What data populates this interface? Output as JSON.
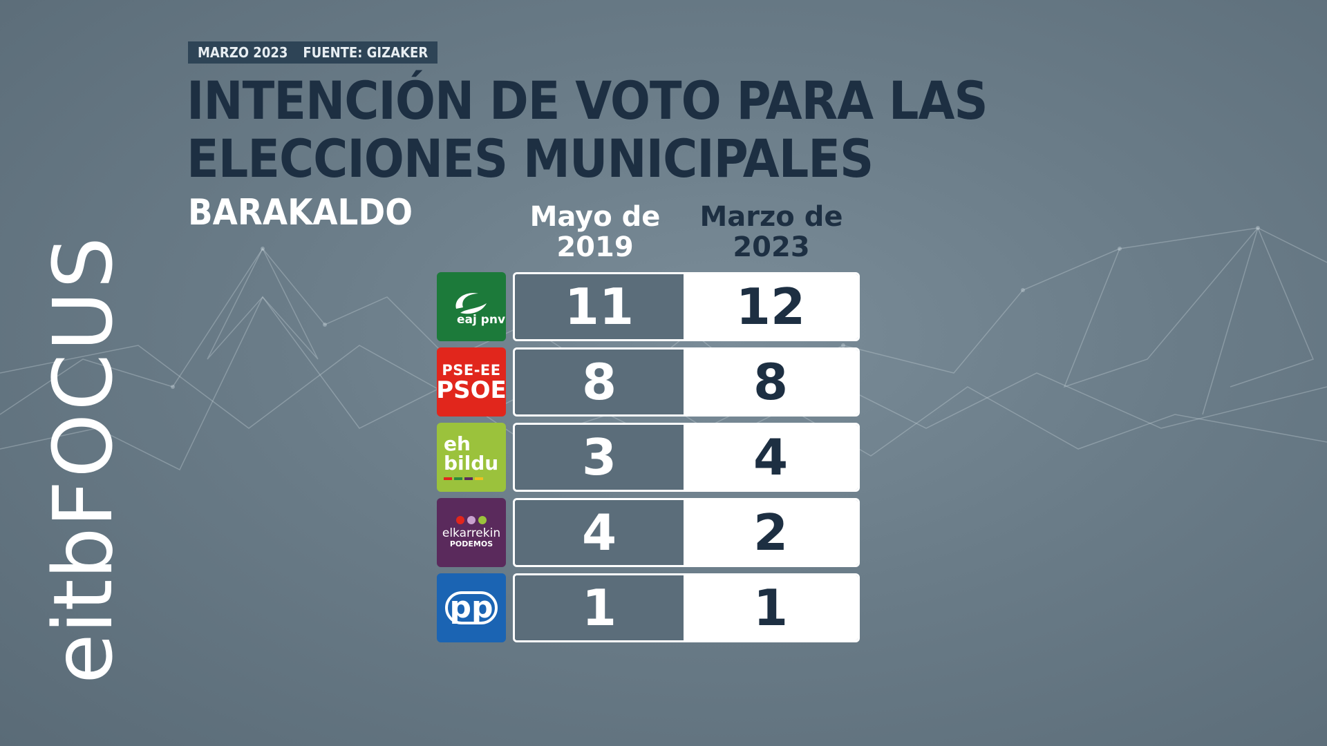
{
  "header": {
    "date": "MARZO 2023",
    "source": "FUENTE: GIZAKER",
    "title": "INTENCIÓN DE VOTO PARA LAS ELECCIONES MUNICIPALES",
    "subtitle": "BARAKALDO"
  },
  "brand": {
    "part1": "eitb",
    "part2": "FOCUS"
  },
  "columns": [
    "Mayo de 2019",
    "Marzo de 2023"
  ],
  "colors": {
    "title": "#1d2f42",
    "cell_2019_bg": "#5b6d7a",
    "cell_2023_bg": "#ffffff",
    "pnv": "#1c7a3a",
    "psoe": "#e1261c",
    "bildu": "#9bc23c",
    "podemos": "#5a2a5c",
    "pp": "#1b64b3"
  },
  "logos": {
    "pnv": {
      "text": "eaj pnv"
    },
    "psoe": {
      "top": "PSE-EE",
      "bottom": "PSOE"
    },
    "bildu": {
      "top": "eh",
      "bottom": "bildu"
    },
    "podemos": {
      "top": "elkarrekin",
      "bottom": "PODEMOS"
    },
    "pp": {
      "text": "pp"
    }
  },
  "chart_data": {
    "type": "table",
    "title": "INTENCIÓN DE VOTO PARA LAS ELECCIONES MUNICIPALES",
    "subtitle": "BARAKALDO",
    "columns": [
      "Mayo de 2019",
      "Marzo de 2023"
    ],
    "rows": [
      {
        "party": "EAJ-PNV",
        "values": [
          11,
          12
        ]
      },
      {
        "party": "PSE-EE PSOE",
        "values": [
          8,
          8
        ]
      },
      {
        "party": "EH Bildu",
        "values": [
          3,
          4
        ]
      },
      {
        "party": "Elkarrekin Podemos",
        "values": [
          4,
          2
        ]
      },
      {
        "party": "PP",
        "values": [
          1,
          1
        ]
      }
    ]
  }
}
